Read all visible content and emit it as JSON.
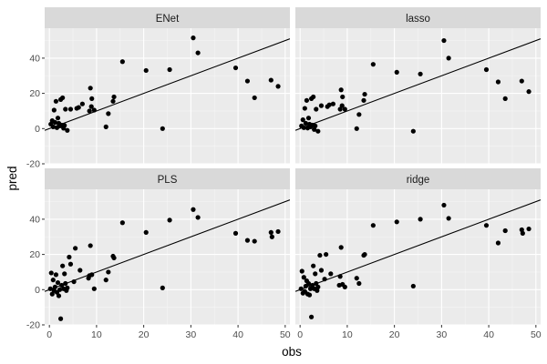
{
  "chart_data": {
    "type": "scatter",
    "xlabel": "obs",
    "ylabel": "pred",
    "xlim": [
      -1,
      51
    ],
    "ylim": [
      -20,
      57
    ],
    "x_ticks": [
      0,
      10,
      20,
      30,
      40,
      50
    ],
    "y_ticks": [
      -20,
      0,
      20,
      40
    ],
    "x_tick_labels": [
      "0",
      "10",
      "20",
      "30",
      "40",
      "50"
    ],
    "y_tick_labels": [
      "-20",
      "0",
      "20",
      "40"
    ],
    "grid": true,
    "reference_line": {
      "intercept": 0,
      "slope": 1
    },
    "colors": {
      "panel_bg": "#ebebeb",
      "strip_bg": "#d9d9d9",
      "grid_major": "#ffffff",
      "point": "#000000",
      "line": "#000000"
    },
    "panels": [
      {
        "name": "ENet",
        "points": [
          [
            0.3,
            2.5
          ],
          [
            0.6,
            4.5
          ],
          [
            0.8,
            1
          ],
          [
            1,
            10.5
          ],
          [
            1.2,
            3.5
          ],
          [
            1.4,
            15.5
          ],
          [
            1.6,
            0.5
          ],
          [
            1.8,
            6
          ],
          [
            2,
            3
          ],
          [
            2.2,
            1.5
          ],
          [
            2.4,
            16.5
          ],
          [
            2.6,
            2
          ],
          [
            2.8,
            17.5
          ],
          [
            3,
            0.2
          ],
          [
            3.2,
            1.8
          ],
          [
            3.4,
            11
          ],
          [
            3.8,
            -1
          ],
          [
            4.5,
            11
          ],
          [
            5.8,
            11.5
          ],
          [
            6.2,
            12
          ],
          [
            7,
            14
          ],
          [
            8.5,
            10
          ],
          [
            8.7,
            23
          ],
          [
            8.9,
            12.5
          ],
          [
            9,
            17
          ],
          [
            9.5,
            10.5
          ],
          [
            12,
            1
          ],
          [
            12.5,
            8.5
          ],
          [
            13.5,
            15.5
          ],
          [
            13.7,
            18
          ],
          [
            15.5,
            38
          ],
          [
            20.5,
            33
          ],
          [
            24,
            0
          ],
          [
            25.5,
            33.5
          ],
          [
            30.5,
            51.5
          ],
          [
            31.5,
            43
          ],
          [
            39.5,
            34.5
          ],
          [
            42,
            27
          ],
          [
            43.5,
            17.5
          ],
          [
            47,
            27.5
          ],
          [
            48.5,
            24
          ]
        ]
      },
      {
        "name": "lasso",
        "points": [
          [
            0.3,
            1.5
          ],
          [
            0.6,
            5
          ],
          [
            0.8,
            0.5
          ],
          [
            1,
            11.5
          ],
          [
            1.2,
            3
          ],
          [
            1.4,
            16
          ],
          [
            1.6,
            0.3
          ],
          [
            1.8,
            6
          ],
          [
            2,
            2.5
          ],
          [
            2.2,
            1
          ],
          [
            2.4,
            17
          ],
          [
            2.6,
            2
          ],
          [
            2.8,
            18
          ],
          [
            3,
            -0.5
          ],
          [
            3.2,
            1.5
          ],
          [
            3.4,
            11
          ],
          [
            3.8,
            -1.5
          ],
          [
            4.5,
            13
          ],
          [
            5.8,
            12.5
          ],
          [
            6.2,
            13.5
          ],
          [
            7,
            14
          ],
          [
            8.5,
            11
          ],
          [
            8.7,
            22
          ],
          [
            8.9,
            13
          ],
          [
            9,
            18
          ],
          [
            9.5,
            11
          ],
          [
            12,
            0
          ],
          [
            12.5,
            8
          ],
          [
            13.5,
            16
          ],
          [
            13.7,
            19.5
          ],
          [
            15.5,
            36.5
          ],
          [
            20.5,
            32
          ],
          [
            24,
            -1.5
          ],
          [
            25.5,
            31
          ],
          [
            30.5,
            50
          ],
          [
            31.5,
            40
          ],
          [
            39.5,
            33.5
          ],
          [
            42,
            26.5
          ],
          [
            43.5,
            17
          ],
          [
            47,
            27
          ],
          [
            48.5,
            21
          ]
        ]
      },
      {
        "name": "PLS",
        "points": [
          [
            0.2,
            0.5
          ],
          [
            0.4,
            9.5
          ],
          [
            0.6,
            -2.5
          ],
          [
            0.8,
            5.5
          ],
          [
            1,
            -0.5
          ],
          [
            1.2,
            1.5
          ],
          [
            1.4,
            8.5
          ],
          [
            1.6,
            -1.5
          ],
          [
            1.8,
            4
          ],
          [
            2,
            -3.5
          ],
          [
            2.2,
            0
          ],
          [
            2.4,
            -16.5
          ],
          [
            2.6,
            2.5
          ],
          [
            2.8,
            13.5
          ],
          [
            3,
            0.5
          ],
          [
            3.2,
            9
          ],
          [
            3.4,
            3.5
          ],
          [
            3.6,
            -0.5
          ],
          [
            3.8,
            1
          ],
          [
            4.2,
            18.5
          ],
          [
            4.5,
            14.5
          ],
          [
            5.2,
            4.5
          ],
          [
            5.5,
            23.5
          ],
          [
            6.5,
            11
          ],
          [
            8.3,
            6.5
          ],
          [
            8.5,
            8
          ],
          [
            8.7,
            25
          ],
          [
            9,
            8.5
          ],
          [
            9.5,
            0.5
          ],
          [
            12,
            5.5
          ],
          [
            12.5,
            10
          ],
          [
            13.5,
            19
          ],
          [
            13.7,
            18
          ],
          [
            15.5,
            38
          ],
          [
            20.5,
            32.5
          ],
          [
            24,
            1
          ],
          [
            25.5,
            39.5
          ],
          [
            30.5,
            45.5
          ],
          [
            31.5,
            41
          ],
          [
            39.5,
            32
          ],
          [
            42,
            28
          ],
          [
            43.5,
            27.5
          ],
          [
            47,
            32.5
          ],
          [
            47.2,
            30
          ],
          [
            48.5,
            33
          ]
        ]
      },
      {
        "name": "ridge",
        "points": [
          [
            0.2,
            0.5
          ],
          [
            0.4,
            10.5
          ],
          [
            0.6,
            -2
          ],
          [
            0.8,
            7
          ],
          [
            1,
            -1
          ],
          [
            1.2,
            2
          ],
          [
            1.4,
            5
          ],
          [
            1.6,
            -2.5
          ],
          [
            1.8,
            3.5
          ],
          [
            2,
            -3
          ],
          [
            2.2,
            0.5
          ],
          [
            2.4,
            -15.5
          ],
          [
            2.6,
            2.5
          ],
          [
            2.8,
            13.5
          ],
          [
            3,
            0.5
          ],
          [
            3.2,
            9
          ],
          [
            3.4,
            3.5
          ],
          [
            3.6,
            -0.5
          ],
          [
            3.8,
            1.5
          ],
          [
            4.2,
            19.5
          ],
          [
            4.5,
            11
          ],
          [
            5.2,
            6
          ],
          [
            5.5,
            20
          ],
          [
            6.5,
            9
          ],
          [
            8.3,
            2.5
          ],
          [
            8.5,
            7.5
          ],
          [
            8.7,
            24
          ],
          [
            9,
            3
          ],
          [
            9.5,
            1.5
          ],
          [
            12,
            6.5
          ],
          [
            12.5,
            3.5
          ],
          [
            13.5,
            19.5
          ],
          [
            13.7,
            20
          ],
          [
            15.5,
            36.5
          ],
          [
            20.5,
            38.5
          ],
          [
            24,
            2
          ],
          [
            25.5,
            40
          ],
          [
            30.5,
            48
          ],
          [
            31.5,
            40.5
          ],
          [
            39.5,
            36.5
          ],
          [
            42,
            26.5
          ],
          [
            43.5,
            33.5
          ],
          [
            47,
            34
          ],
          [
            47.2,
            32
          ],
          [
            48.5,
            34.5
          ]
        ]
      }
    ]
  }
}
